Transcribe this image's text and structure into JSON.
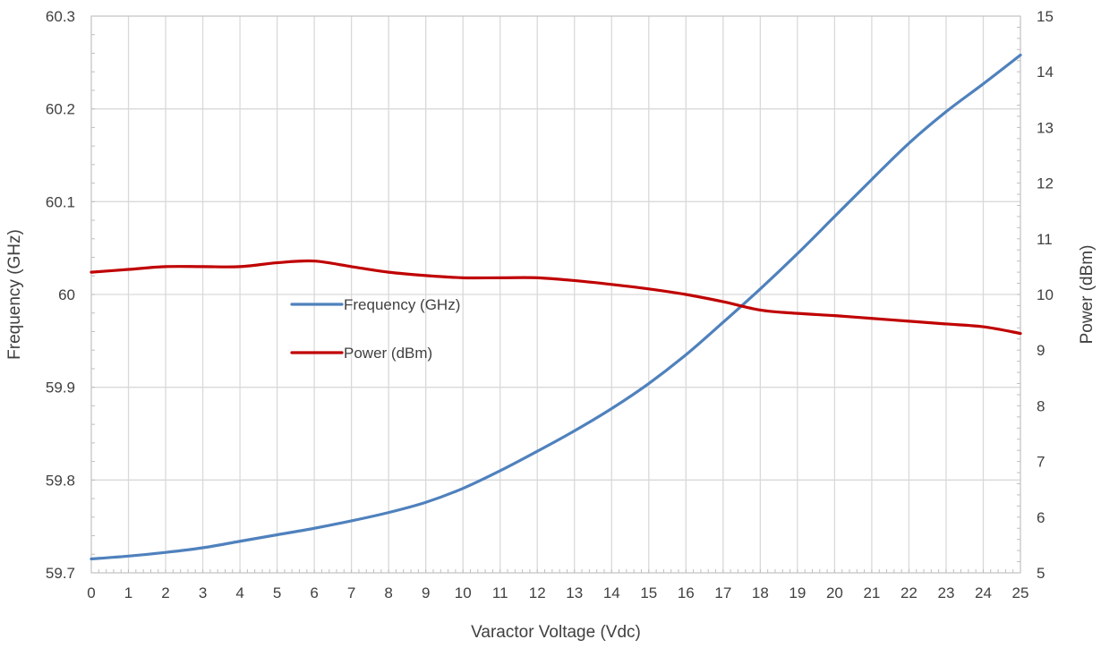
{
  "chart_data": {
    "type": "line",
    "xlabel": "Varactor Voltage (Vdc)",
    "ylabel": "Frequency (GHz)",
    "y2label": "Power (dBm)",
    "xlim": [
      0,
      25
    ],
    "ylim": [
      59.7,
      60.3
    ],
    "y2lim": [
      5,
      15
    ],
    "x_ticks": [
      "0",
      "1",
      "2",
      "3",
      "4",
      "5",
      "6",
      "7",
      "8",
      "9",
      "10",
      "11",
      "12",
      "13",
      "14",
      "15",
      "16",
      "17",
      "18",
      "19",
      "20",
      "21",
      "22",
      "23",
      "24",
      "25"
    ],
    "y_ticks": [
      "59.7",
      "59.8",
      "59.9",
      "60",
      "60.1",
      "60.2",
      "60.3"
    ],
    "y2_ticks": [
      "5",
      "6",
      "7",
      "8",
      "9",
      "10",
      "11",
      "12",
      "13",
      "14",
      "15"
    ],
    "grid": true,
    "legend_position": "inside-center-left",
    "x": [
      0,
      1,
      2,
      3,
      4,
      5,
      6,
      7,
      8,
      9,
      10,
      11,
      12,
      13,
      14,
      15,
      16,
      17,
      18,
      19,
      20,
      21,
      22,
      23,
      24,
      25
    ],
    "series": [
      {
        "name": "Frequency (GHz)",
        "axis": "left",
        "color": "#4f81bd",
        "values": [
          59.715,
          59.718,
          59.722,
          59.727,
          59.734,
          59.741,
          59.748,
          59.756,
          59.765,
          59.776,
          59.791,
          59.81,
          59.831,
          59.853,
          59.877,
          59.904,
          59.935,
          59.97,
          60.006,
          60.044,
          60.084,
          60.124,
          60.163,
          60.197,
          60.227,
          60.258
        ]
      },
      {
        "name": "Power (dBm)",
        "axis": "right",
        "color": "#c00000",
        "values": [
          10.4,
          10.45,
          10.5,
          10.5,
          10.5,
          10.57,
          10.6,
          10.5,
          10.4,
          10.34,
          10.3,
          10.3,
          10.3,
          10.25,
          10.18,
          10.1,
          10.0,
          9.87,
          9.72,
          9.66,
          9.62,
          9.57,
          9.52,
          9.47,
          9.42,
          9.3
        ]
      }
    ]
  }
}
